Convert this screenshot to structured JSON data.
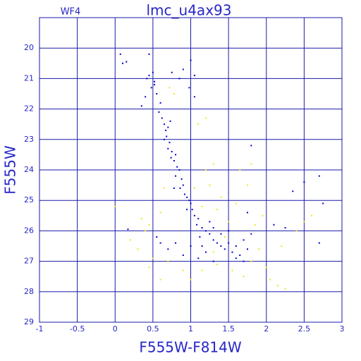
{
  "chart_data": {
    "type": "scatter",
    "title": "lmc_u4ax93",
    "subtitle": "WF4",
    "x_label": "F555W-F814W",
    "y_label": "F555W",
    "xlim": [
      -1,
      3
    ],
    "ylim": [
      29,
      19
    ],
    "xticks": [
      -1,
      -0.5,
      0,
      0.5,
      1,
      1.5,
      2,
      2.5,
      3
    ],
    "yticks": [
      20,
      21,
      22,
      23,
      24,
      25,
      26,
      27,
      28,
      29
    ],
    "grid": true,
    "series": [
      {
        "color": "#0000cc",
        "x": [
          0.07,
          0.1,
          0.15,
          0.45,
          0.45,
          0.5,
          0.52,
          0.48,
          0.55,
          0.42,
          0.6,
          0.35,
          0.58,
          0.62,
          0.65,
          0.67,
          0.7,
          0.68,
          0.72,
          0.7,
          0.75,
          0.74,
          0.78,
          0.8,
          0.82,
          0.85,
          0.8,
          0.88,
          0.9,
          0.86,
          0.92,
          0.95,
          0.98,
          1.0,
          1.02,
          0.95,
          1.05,
          1.1,
          1.08,
          1.15,
          1.2,
          1.12,
          1.25,
          1.3,
          1.35,
          1.4,
          1.45,
          1.5,
          1.55,
          1.6,
          1.65,
          1.7,
          1.75,
          1.2,
          1.0,
          0.9,
          0.8,
          0.7,
          0.6,
          0.55,
          1.3,
          1.4,
          1.5,
          1.1,
          1.3,
          0.17,
          0.75,
          0.9,
          1.0,
          1.05,
          0.98,
          1.05,
          0.85,
          1.8,
          1.8,
          1.75,
          2.35,
          2.5,
          2.7,
          2.75,
          2.7,
          2.1,
          2.25,
          0.4,
          0.52,
          1.6,
          1.7,
          1.15,
          1.25,
          0.78,
          0.65,
          0.73
        ],
        "y": [
          20.2,
          20.5,
          20.45,
          20.2,
          20.9,
          20.8,
          21.1,
          21.3,
          21.5,
          21.0,
          21.8,
          21.9,
          22.1,
          22.3,
          22.5,
          22.7,
          22.6,
          22.9,
          23.1,
          23.3,
          23.4,
          23.6,
          23.7,
          23.5,
          23.9,
          24.0,
          24.2,
          24.3,
          24.5,
          24.6,
          24.8,
          24.9,
          25.0,
          25.1,
          25.3,
          25.3,
          25.5,
          25.6,
          25.8,
          25.9,
          26.0,
          26.2,
          26.1,
          26.3,
          26.4,
          26.5,
          26.6,
          26.4,
          26.7,
          26.5,
          26.8,
          26.3,
          26.6,
          26.7,
          26.5,
          26.8,
          26.4,
          26.6,
          26.4,
          26.2,
          25.9,
          26.1,
          26.0,
          26.9,
          27.0,
          25.95,
          20.8,
          20.7,
          20.4,
          20.9,
          21.3,
          21.6,
          21.0,
          23.2,
          26.1,
          25.4,
          24.7,
          24.4,
          24.2,
          25.1,
          26.4,
          25.8,
          25.9,
          21.6,
          21.2,
          26.9,
          27.0,
          26.5,
          25.7,
          24.6,
          23.0,
          22.4
        ]
      },
      {
        "color": "#f2e21a",
        "x": [
          0.0,
          0.2,
          0.3,
          0.4,
          0.45,
          0.5,
          0.45,
          0.6,
          0.7,
          0.6,
          0.65,
          0.78,
          0.72,
          1.2,
          1.3,
          1.25,
          1.4,
          1.35,
          1.5,
          1.45,
          1.6,
          1.3,
          1.35,
          1.55,
          1.8,
          1.9,
          2.0,
          2.05,
          2.15,
          1.85,
          1.75,
          1.95,
          1.1,
          1.2,
          0.9,
          1.0,
          1.15,
          1.7,
          2.25,
          2.4,
          2.5,
          2.6,
          1.8,
          2.2,
          0.35,
          1.65,
          1.05,
          1.15
        ],
        "y": [
          25.2,
          26.3,
          26.6,
          26.0,
          25.8,
          26.9,
          27.2,
          27.6,
          27.0,
          25.4,
          24.6,
          21.5,
          21.3,
          24.0,
          23.8,
          24.5,
          24.9,
          25.3,
          25.7,
          26.2,
          25.1,
          26.7,
          27.1,
          27.3,
          27.0,
          26.6,
          27.2,
          27.6,
          27.8,
          25.8,
          24.5,
          25.5,
          22.5,
          22.3,
          27.3,
          27.6,
          27.3,
          27.5,
          27.9,
          26.0,
          25.7,
          25.5,
          23.8,
          26.5,
          25.6,
          24.0,
          24.6,
          25.2
        ]
      }
    ]
  }
}
